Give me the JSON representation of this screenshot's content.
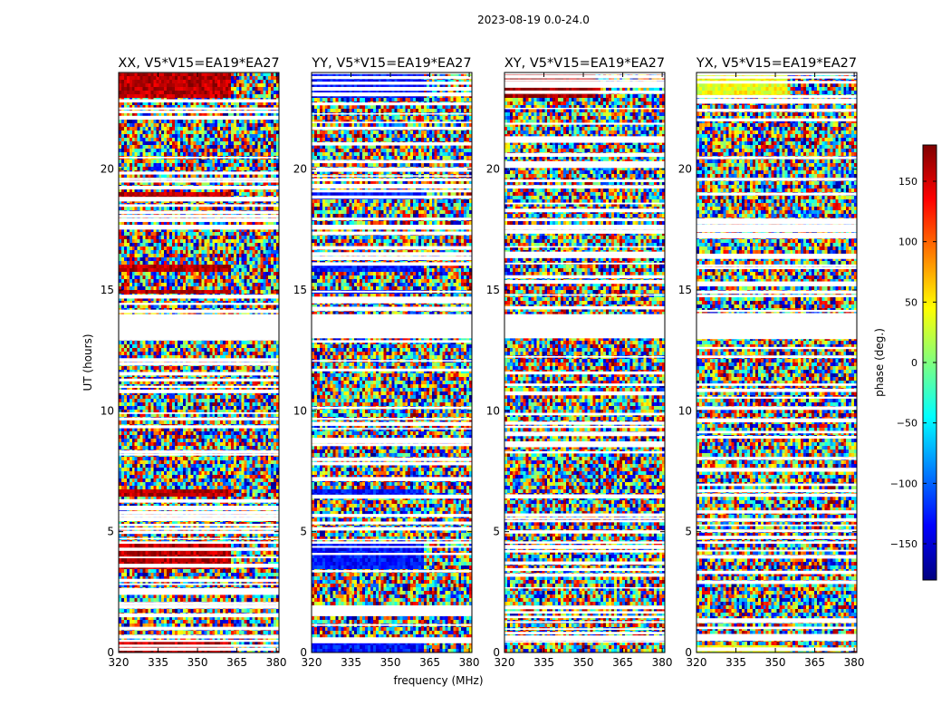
{
  "figure": {
    "suptitle": "2023-08-19 0.0-24.0",
    "colorbar_label": "phase (deg.)",
    "colorbar_ticks": [
      -150,
      -100,
      -50,
      0,
      50,
      100,
      150
    ],
    "colorbar_range": [
      -180,
      180
    ],
    "colormap": [
      "#00007f",
      "#0000ff",
      "#007fff",
      "#00ffff",
      "#7fff7f",
      "#ffff00",
      "#ff7f00",
      "#ff0000",
      "#7f0000"
    ],
    "shared_ylabel": "UT (hours)",
    "shared_xlabel": "frequency (MHz)"
  },
  "chart_data": [
    {
      "type": "heatmap",
      "title": "XX, V5*V15=EA19*EA27",
      "xlabel": "",
      "ylabel": "UT (hours)",
      "xlim": [
        320,
        381
      ],
      "ylim": [
        0,
        24
      ],
      "xticks": [
        320,
        335,
        350,
        365,
        380
      ],
      "yticks": [
        0,
        5,
        10,
        15,
        20
      ],
      "z_units": "phase (deg.)",
      "base_phase": 160,
      "noise_free_freq_max": 363,
      "coherent_time_ranges": [
        [
          23.0,
          24.0
        ],
        [
          0.0,
          0.5
        ],
        [
          3.4,
          4.5
        ],
        [
          18.8,
          19.0
        ],
        [
          15.7,
          16.0
        ],
        [
          14.8,
          15.0
        ],
        [
          6.5,
          6.8
        ]
      ],
      "flagged_time_ranges": [
        [
          13.0,
          14.0
        ],
        [
          4.5,
          4.6
        ],
        [
          17.5,
          17.7
        ]
      ]
    },
    {
      "type": "heatmap",
      "title": "YY, V5*V15=EA19*EA27",
      "xlabel": "frequency (MHz)",
      "ylabel": "",
      "xlim": [
        320,
        381
      ],
      "ylim": [
        0,
        24
      ],
      "xticks": [
        320,
        335,
        350,
        365,
        380
      ],
      "yticks": [
        0,
        5,
        10,
        15,
        20
      ],
      "z_units": "phase (deg.)",
      "base_phase": -130,
      "noise_free_freq_max": 363,
      "coherent_time_ranges": [
        [
          23.0,
          24.0
        ],
        [
          0.0,
          0.5
        ],
        [
          3.4,
          4.5
        ],
        [
          18.8,
          19.0
        ],
        [
          15.7,
          16.0
        ],
        [
          14.8,
          15.0
        ],
        [
          6.5,
          6.8
        ]
      ],
      "flagged_time_ranges": [
        [
          13.0,
          14.0
        ],
        [
          4.5,
          4.6
        ],
        [
          17.5,
          17.7
        ]
      ]
    },
    {
      "type": "heatmap",
      "title": "XY, V5*V15=EA19*EA27",
      "xlabel": "",
      "ylabel": "",
      "xlim": [
        320,
        381
      ],
      "ylim": [
        0,
        24
      ],
      "xticks": [
        320,
        335,
        350,
        365,
        380
      ],
      "yticks": [
        0,
        5,
        10,
        15,
        20
      ],
      "z_units": "phase (deg.)",
      "base_phase": 170,
      "noise_free_freq_max": 355,
      "coherent_time_ranges": [
        [
          23.0,
          24.0
        ]
      ],
      "flagged_time_ranges": [
        [
          13.0,
          14.0
        ],
        [
          4.5,
          4.6
        ],
        [
          17.5,
          17.7
        ]
      ]
    },
    {
      "type": "heatmap",
      "title": "YX, V5*V15=EA19*EA27",
      "xlabel": "",
      "ylabel": "",
      "xlim": [
        320,
        381
      ],
      "ylim": [
        0,
        24
      ],
      "xticks": [
        320,
        335,
        350,
        365,
        380
      ],
      "yticks": [
        0,
        5,
        10,
        15,
        20
      ],
      "z_units": "phase (deg.)",
      "base_phase": 40,
      "noise_free_freq_max": 355,
      "coherent_time_ranges": [
        [
          23.0,
          24.0
        ],
        [
          0.0,
          0.3
        ]
      ],
      "flagged_time_ranges": [
        [
          13.0,
          14.0
        ],
        [
          4.5,
          4.6
        ],
        [
          17.5,
          17.7
        ]
      ]
    }
  ]
}
